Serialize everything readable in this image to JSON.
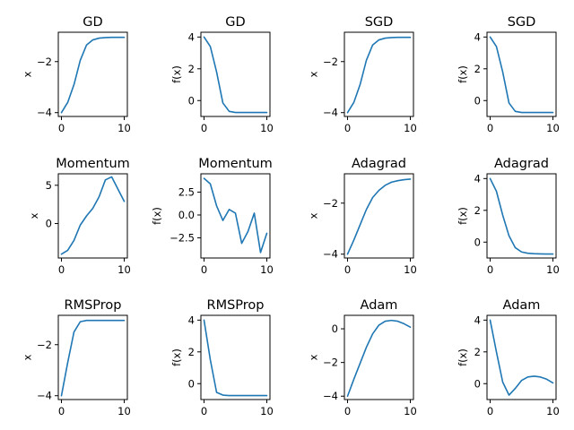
{
  "chart_data": [
    {
      "type": "line",
      "title": "GD",
      "ylabel": "x",
      "xlim": [
        -0.5,
        10.5
      ],
      "ylim": [
        -4.15,
        -0.85
      ],
      "xticks": [
        0,
        10
      ],
      "yticks": [
        -4,
        -2
      ],
      "ytick_labels": [
        "−4",
        "−2"
      ],
      "series": [
        {
          "x": [
            0,
            1,
            2,
            3,
            4,
            5,
            6,
            7,
            8,
            9,
            10
          ],
          "values": [
            -4.0,
            -3.6,
            -2.9,
            -1.95,
            -1.35,
            -1.15,
            -1.08,
            -1.06,
            -1.05,
            -1.05,
            -1.05
          ]
        }
      ]
    },
    {
      "type": "line",
      "title": "GD",
      "ylabel": "f(x)",
      "xlim": [
        -0.5,
        10.5
      ],
      "ylim": [
        -1.0,
        4.3
      ],
      "xticks": [
        0,
        10
      ],
      "yticks": [
        0,
        2,
        4
      ],
      "ytick_labels": [
        "0",
        "2",
        "4"
      ],
      "series": [
        {
          "x": [
            0,
            1,
            2,
            3,
            4,
            5,
            6,
            7,
            8,
            9,
            10
          ],
          "values": [
            4.0,
            3.4,
            1.8,
            -0.15,
            -0.68,
            -0.75,
            -0.75,
            -0.75,
            -0.75,
            -0.75,
            -0.75
          ]
        }
      ]
    },
    {
      "type": "line",
      "title": "SGD",
      "ylabel": "x",
      "xlim": [
        -0.5,
        10.5
      ],
      "ylim": [
        -4.15,
        -0.85
      ],
      "xticks": [
        0,
        10
      ],
      "yticks": [
        -4,
        -2
      ],
      "ytick_labels": [
        "−4",
        "−2"
      ],
      "series": [
        {
          "x": [
            0,
            1,
            2,
            3,
            4,
            5,
            6,
            7,
            8,
            9,
            10
          ],
          "values": [
            -4.0,
            -3.6,
            -2.9,
            -1.95,
            -1.35,
            -1.15,
            -1.08,
            -1.06,
            -1.05,
            -1.05,
            -1.05
          ]
        }
      ]
    },
    {
      "type": "line",
      "title": "SGD",
      "ylabel": "f(x)",
      "xlim": [
        -0.5,
        10.5
      ],
      "ylim": [
        -1.0,
        4.3
      ],
      "xticks": [
        0,
        10
      ],
      "yticks": [
        0,
        2,
        4
      ],
      "ytick_labels": [
        "0",
        "2",
        "4"
      ],
      "series": [
        {
          "x": [
            0,
            1,
            2,
            3,
            4,
            5,
            6,
            7,
            8,
            9,
            10
          ],
          "values": [
            4.0,
            3.4,
            1.8,
            -0.15,
            -0.68,
            -0.75,
            -0.75,
            -0.75,
            -0.75,
            -0.75,
            -0.75
          ]
        }
      ]
    },
    {
      "type": "line",
      "title": "Momentum",
      "ylabel": "x",
      "xlim": [
        -0.5,
        10.5
      ],
      "ylim": [
        -4.5,
        6.5
      ],
      "xticks": [
        0,
        10
      ],
      "yticks": [
        0,
        5
      ],
      "ytick_labels": [
        "0",
        "5"
      ],
      "series": [
        {
          "x": [
            0,
            1,
            2,
            3,
            4,
            5,
            6,
            7,
            8,
            9,
            10
          ],
          "values": [
            -4.0,
            -3.5,
            -2.2,
            -0.2,
            1.0,
            2.0,
            3.5,
            5.7,
            6.1,
            4.5,
            2.9
          ]
        }
      ]
    },
    {
      "type": "line",
      "title": "Momentum",
      "ylabel": "f(x)",
      "xlim": [
        -0.5,
        10.5
      ],
      "ylim": [
        -4.7,
        4.5
      ],
      "xticks": [
        0,
        10
      ],
      "yticks": [
        -2.5,
        0.0,
        2.5
      ],
      "ytick_labels": [
        "−2.5",
        "0.0",
        "2.5"
      ],
      "series": [
        {
          "x": [
            0,
            1,
            2,
            3,
            4,
            5,
            6,
            7,
            8,
            9,
            10
          ],
          "values": [
            4.0,
            3.4,
            1.0,
            -0.6,
            0.6,
            0.2,
            -3.1,
            -1.8,
            0.2,
            -4.1,
            -2.0
          ]
        }
      ]
    },
    {
      "type": "line",
      "title": "Adagrad",
      "ylabel": "x",
      "xlim": [
        -0.5,
        10.5
      ],
      "ylim": [
        -4.15,
        -0.85
      ],
      "xticks": [
        0,
        10
      ],
      "yticks": [
        -4,
        -2
      ],
      "ytick_labels": [
        "−4",
        "−2"
      ],
      "series": [
        {
          "x": [
            0,
            1,
            2,
            3,
            4,
            5,
            6,
            7,
            8,
            9,
            10
          ],
          "values": [
            -4.0,
            -3.45,
            -2.85,
            -2.25,
            -1.78,
            -1.5,
            -1.3,
            -1.18,
            -1.12,
            -1.08,
            -1.06
          ]
        }
      ]
    },
    {
      "type": "line",
      "title": "Adagrad",
      "ylabel": "f(x)",
      "xlim": [
        -0.5,
        10.5
      ],
      "ylim": [
        -1.0,
        4.3
      ],
      "xticks": [
        0,
        10
      ],
      "yticks": [
        0,
        2,
        4
      ],
      "ytick_labels": [
        "0",
        "2",
        "4"
      ],
      "series": [
        {
          "x": [
            0,
            1,
            2,
            3,
            4,
            5,
            6,
            7,
            8,
            9,
            10
          ],
          "values": [
            4.0,
            3.2,
            1.7,
            0.4,
            -0.35,
            -0.62,
            -0.7,
            -0.73,
            -0.74,
            -0.75,
            -0.75
          ]
        }
      ]
    },
    {
      "type": "line",
      "title": "RMSProp",
      "ylabel": "x",
      "xlim": [
        -0.5,
        10.5
      ],
      "ylim": [
        -4.15,
        -0.85
      ],
      "xticks": [
        0,
        10
      ],
      "yticks": [
        -4,
        -2
      ],
      "ytick_labels": [
        "−4",
        "−2"
      ],
      "series": [
        {
          "x": [
            0,
            1,
            2,
            3,
            4,
            5,
            6,
            7,
            8,
            9,
            10
          ],
          "values": [
            -4.0,
            -2.7,
            -1.5,
            -1.1,
            -1.05,
            -1.05,
            -1.05,
            -1.05,
            -1.05,
            -1.05,
            -1.05
          ]
        }
      ]
    },
    {
      "type": "line",
      "title": "RMSProp",
      "ylabel": "f(x)",
      "xlim": [
        -0.5,
        10.5
      ],
      "ylim": [
        -1.0,
        4.3
      ],
      "xticks": [
        0,
        10
      ],
      "yticks": [
        0,
        2,
        4
      ],
      "ytick_labels": [
        "0",
        "2",
        "4"
      ],
      "series": [
        {
          "x": [
            0,
            1,
            2,
            3,
            4,
            5,
            6,
            7,
            8,
            9,
            10
          ],
          "values": [
            4.0,
            1.5,
            -0.55,
            -0.72,
            -0.75,
            -0.75,
            -0.75,
            -0.75,
            -0.75,
            -0.75,
            -0.75
          ]
        }
      ]
    },
    {
      "type": "line",
      "title": "Adam",
      "ylabel": "x",
      "xlim": [
        -0.5,
        10.5
      ],
      "ylim": [
        -4.2,
        0.8
      ],
      "xticks": [
        0,
        10
      ],
      "yticks": [
        -4,
        -2,
        0
      ],
      "ytick_labels": [
        "−4",
        "−2",
        "0"
      ],
      "series": [
        {
          "x": [
            0,
            1,
            2,
            3,
            4,
            5,
            6,
            7,
            8,
            9,
            10
          ],
          "values": [
            -4.0,
            -3.0,
            -2.05,
            -1.1,
            -0.3,
            0.22,
            0.45,
            0.5,
            0.45,
            0.3,
            0.1
          ]
        }
      ]
    },
    {
      "type": "line",
      "title": "Adam",
      "ylabel": "f(x)",
      "xlim": [
        -0.5,
        10.5
      ],
      "ylim": [
        -1.0,
        4.3
      ],
      "xticks": [
        0,
        10
      ],
      "yticks": [
        0,
        2,
        4
      ],
      "ytick_labels": [
        "0",
        "2",
        "4"
      ],
      "series": [
        {
          "x": [
            0,
            1,
            2,
            3,
            4,
            5,
            6,
            7,
            8,
            9,
            10
          ],
          "values": [
            4.0,
            2.0,
            0.1,
            -0.72,
            -0.3,
            0.2,
            0.42,
            0.47,
            0.42,
            0.28,
            0.05
          ]
        }
      ]
    }
  ],
  "line_color": "#1f77b4"
}
